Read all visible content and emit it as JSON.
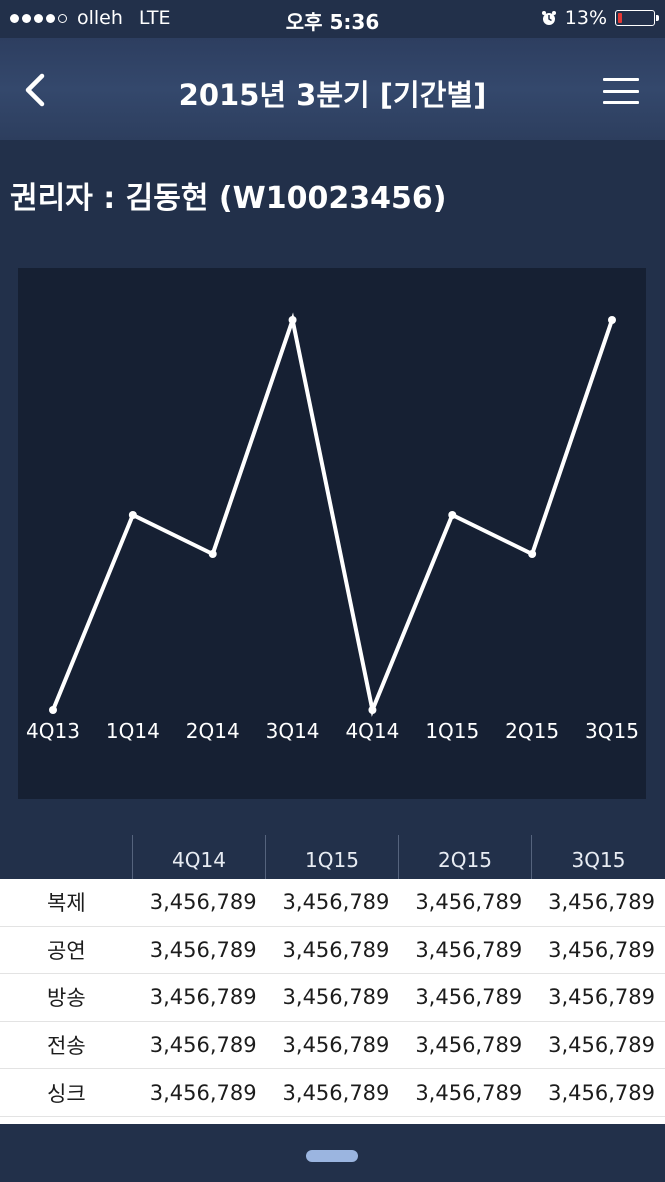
{
  "status_bar": {
    "carrier": "olleh",
    "network": "LTE",
    "time": "오후 5:36",
    "battery": "13%",
    "battery_level": 0.13,
    "signal_bars_filled": 4,
    "signal_bars_total": 5
  },
  "nav": {
    "title": "2015년 3분기 [기간별]",
    "back_icon": "chevron-left-icon",
    "menu_icon": "hamburger-menu-icon"
  },
  "rights_holder": "권리자 : 김동현 (W10023456)",
  "chart_data": {
    "type": "line",
    "categories": [
      "4Q13",
      "1Q14",
      "2Q14",
      "3Q14",
      "4Q14",
      "1Q15",
      "2Q15",
      "3Q15"
    ],
    "values": [
      0,
      5,
      4,
      10,
      0,
      5,
      4,
      10
    ],
    "ylim": [
      0,
      10
    ],
    "grid": false,
    "line_color": "#ffffff",
    "background": "#162033",
    "title": "",
    "xlabel": "",
    "ylabel": ""
  },
  "table": {
    "columns": [
      "",
      "4Q14",
      "1Q15",
      "2Q15",
      "3Q15"
    ],
    "rows": [
      {
        "label": "복제",
        "values": [
          "3,456,789",
          "3,456,789",
          "3,456,789",
          "3,456,789"
        ]
      },
      {
        "label": "공연",
        "values": [
          "3,456,789",
          "3,456,789",
          "3,456,789",
          "3,456,789"
        ]
      },
      {
        "label": "방송",
        "values": [
          "3,456,789",
          "3,456,789",
          "3,456,789",
          "3,456,789"
        ]
      },
      {
        "label": "전송",
        "values": [
          "3,456,789",
          "3,456,789",
          "3,456,789",
          "3,456,789"
        ]
      },
      {
        "label": "싱크",
        "values": [
          "3,456,789",
          "3,456,789",
          "3,456,789",
          "3,456,789"
        ]
      }
    ]
  },
  "colors": {
    "background": "#22304a",
    "navbar": "#34486c",
    "chart_background": "#162033",
    "table_background": "#ffffff",
    "battery_low": "#e53935",
    "handle": "#9bb5e0"
  }
}
